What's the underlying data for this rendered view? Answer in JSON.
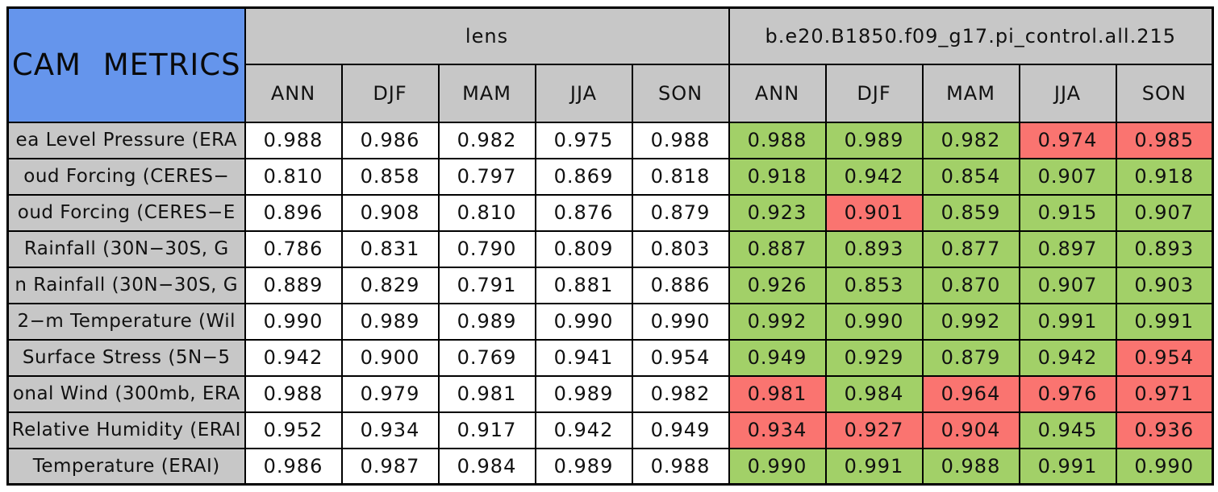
{
  "colors": {
    "accent_blue": "#6595EC",
    "header_gray": "#C7C7C7",
    "better_green": "#A2D068",
    "worse_red": "#FA7470",
    "lens_cell_white": "#FFFFFF",
    "border_black": "#000000"
  },
  "chart_data": {
    "type": "table",
    "title": "CAM METRICS",
    "column_groups": [
      "lens",
      "b.e20.B1850.f09_g17.pi_control.all.215"
    ],
    "columns": [
      "ANN",
      "DJF",
      "MAM",
      "JJA",
      "SON"
    ],
    "legend": {
      "better_color": "#A2D068",
      "worse_color": "#FA7470",
      "better_meaning": "model value shaded green",
      "worse_meaning": "model value shaded red"
    },
    "rows": [
      {
        "label": "ea Level Pressure (ERA",
        "lens": [
          "0.988",
          "0.986",
          "0.982",
          "0.975",
          "0.988"
        ],
        "model": [
          "0.988",
          "0.989",
          "0.982",
          "0.974",
          "0.985"
        ],
        "model_status": [
          "better",
          "better",
          "better",
          "worse",
          "worse"
        ]
      },
      {
        "label": "oud Forcing (CERES−",
        "lens": [
          "0.810",
          "0.858",
          "0.797",
          "0.869",
          "0.818"
        ],
        "model": [
          "0.918",
          "0.942",
          "0.854",
          "0.907",
          "0.918"
        ],
        "model_status": [
          "better",
          "better",
          "better",
          "better",
          "better"
        ]
      },
      {
        "label": "oud Forcing (CERES−E",
        "lens": [
          "0.896",
          "0.908",
          "0.810",
          "0.876",
          "0.879"
        ],
        "model": [
          "0.923",
          "0.901",
          "0.859",
          "0.915",
          "0.907"
        ],
        "model_status": [
          "better",
          "worse",
          "better",
          "better",
          "better"
        ]
      },
      {
        "label": "Rainfall (30N−30S, G",
        "lens": [
          "0.786",
          "0.831",
          "0.790",
          "0.809",
          "0.803"
        ],
        "model": [
          "0.887",
          "0.893",
          "0.877",
          "0.897",
          "0.893"
        ],
        "model_status": [
          "better",
          "better",
          "better",
          "better",
          "better"
        ]
      },
      {
        "label": "n Rainfall (30N−30S, G",
        "lens": [
          "0.889",
          "0.829",
          "0.791",
          "0.881",
          "0.886"
        ],
        "model": [
          "0.926",
          "0.853",
          "0.870",
          "0.907",
          "0.903"
        ],
        "model_status": [
          "better",
          "better",
          "better",
          "better",
          "better"
        ]
      },
      {
        "label": "2−m Temperature (Wil",
        "lens": [
          "0.990",
          "0.989",
          "0.989",
          "0.990",
          "0.990"
        ],
        "model": [
          "0.992",
          "0.990",
          "0.992",
          "0.991",
          "0.991"
        ],
        "model_status": [
          "better",
          "better",
          "better",
          "better",
          "better"
        ]
      },
      {
        "label": "Surface Stress (5N−5",
        "lens": [
          "0.942",
          "0.900",
          "0.769",
          "0.941",
          "0.954"
        ],
        "model": [
          "0.949",
          "0.929",
          "0.879",
          "0.942",
          "0.954"
        ],
        "model_status": [
          "better",
          "better",
          "better",
          "better",
          "worse"
        ]
      },
      {
        "label": "onal Wind (300mb, ERA",
        "lens": [
          "0.988",
          "0.979",
          "0.981",
          "0.989",
          "0.982"
        ],
        "model": [
          "0.981",
          "0.984",
          "0.964",
          "0.976",
          "0.971"
        ],
        "model_status": [
          "worse",
          "better",
          "worse",
          "worse",
          "worse"
        ]
      },
      {
        "label": "Relative Humidity (ERAI",
        "lens": [
          "0.952",
          "0.934",
          "0.917",
          "0.942",
          "0.949"
        ],
        "model": [
          "0.934",
          "0.927",
          "0.904",
          "0.945",
          "0.936"
        ],
        "model_status": [
          "worse",
          "worse",
          "worse",
          "better",
          "worse"
        ]
      },
      {
        "label": "Temperature (ERAI)",
        "lens": [
          "0.986",
          "0.987",
          "0.984",
          "0.989",
          "0.988"
        ],
        "model": [
          "0.990",
          "0.991",
          "0.988",
          "0.991",
          "0.990"
        ],
        "model_status": [
          "better",
          "better",
          "better",
          "better",
          "better"
        ]
      }
    ]
  }
}
